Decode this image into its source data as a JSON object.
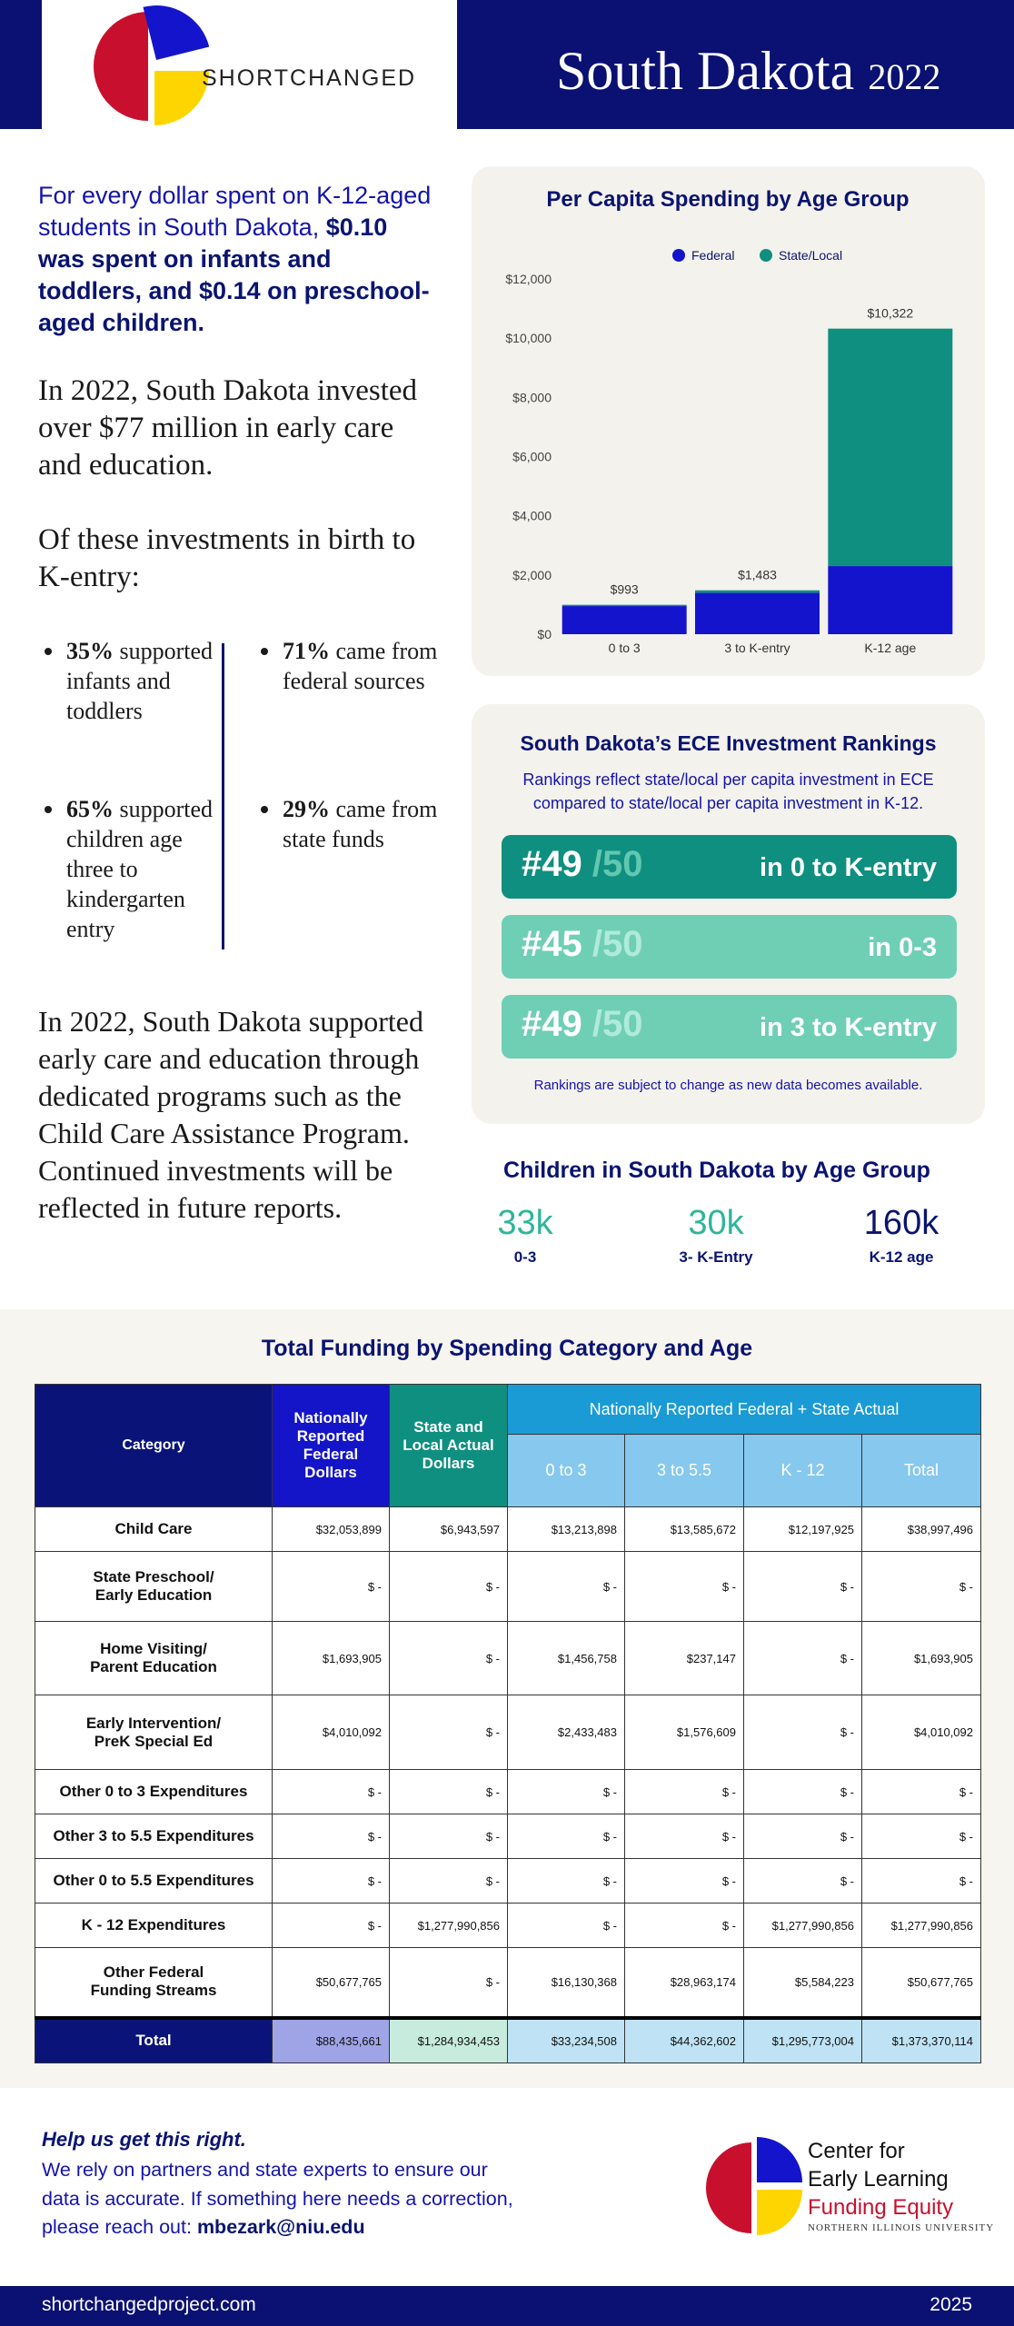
{
  "header": {
    "brand": "SHORTCHANGED",
    "state": "South Dakota",
    "year": "2022"
  },
  "intro": {
    "lead": "For every dollar spent on K-12-aged students in South Dakota,",
    "lead_bold": "$0.10 was spent on infants and toddlers, and $0.14 on preschool-aged children.",
    "invested": "In 2022, South Dakota invested over $77 million in early care and education.",
    "breakdown_heading": "Of these investments in birth to K-entry:",
    "bullets": [
      {
        "pct": "35%",
        "text": "supported infants and toddlers"
      },
      {
        "pct": "65%",
        "text": "supported children age three to kindergarten entry"
      },
      {
        "pct": "71%",
        "text": "came from federal sources"
      },
      {
        "pct": "29%",
        "text": "came from state funds"
      }
    ],
    "closing": "In 2022, South Dakota supported early care and education through dedicated programs such as the Child Care Assistance Program. Continued investments will be reflected in future reports."
  },
  "chart_data": {
    "type": "bar",
    "stacked": true,
    "title": "Per Capita Spending by Age Group",
    "categories": [
      "0 to 3",
      "3 to K-entry",
      "K-12 age"
    ],
    "series": [
      {
        "name": "Federal",
        "color": "#1414cc",
        "values": [
          950,
          1400,
          2300
        ]
      },
      {
        "name": "State/Local",
        "color": "#0f8f80",
        "values": [
          43,
          83,
          8022
        ]
      }
    ],
    "totals": {
      "values": [
        993,
        1483,
        10322
      ],
      "value_labels": [
        "$993",
        "$1,483",
        "$10,322"
      ]
    },
    "ylim": [
      0,
      12000
    ],
    "yticks": [
      {
        "value": 0,
        "label": "$0"
      },
      {
        "value": 2000,
        "label": "$2,000"
      },
      {
        "value": 4000,
        "label": "$4,000"
      },
      {
        "value": 6000,
        "label": "$6,000"
      },
      {
        "value": 8000,
        "label": "$8,000"
      },
      {
        "value": 10000,
        "label": "$10,000"
      },
      {
        "value": 12000,
        "label": "$12,000"
      }
    ],
    "grid": false,
    "legend": "top"
  },
  "rankings": {
    "title": "South Dakota’s ECE Investment Rankings",
    "subtitle": "Rankings reflect state/local per capita investment in ECE compared to state/local per capita investment in K-12.",
    "items": [
      {
        "rank": "#49",
        "of": "/50",
        "label": "in 0 to K-entry"
      },
      {
        "rank": "#45",
        "of": "/50",
        "label": "in 0-3"
      },
      {
        "rank": "#49",
        "of": "/50",
        "label": "in 3 to K-entry"
      }
    ],
    "note": "Rankings are subject to change as new data becomes available."
  },
  "children": {
    "title": "Children in South Dakota by Age Group",
    "items": [
      {
        "value": "33k",
        "label": "0-3"
      },
      {
        "value": "30k",
        "label": "3- K-Entry"
      },
      {
        "value": "160k",
        "label": "K-12 age"
      }
    ]
  },
  "table": {
    "title": "Total Funding by Spending Category and Age",
    "headers": {
      "category": "Category",
      "federal": "Nationally Reported Federal Dollars",
      "state_local": "State and Local Actual Dollars",
      "group": "Nationally Reported Federal + State Actual",
      "sub": [
        "0 to 3",
        "3 to 5.5",
        "K - 12",
        "Total"
      ]
    },
    "rows": [
      [
        "Child Care",
        "$32,053,899",
        "$6,943,597",
        "$13,213,898",
        "$13,585,672",
        "$12,197,925",
        "$38,997,496"
      ],
      [
        "State Preschool/\nEarly Education",
        "$ -",
        "$ -",
        "$ -",
        "$ -",
        "$ -",
        "$ -"
      ],
      [
        "Home Visiting/\nParent Education",
        "$1,693,905",
        "$ -",
        "$1,456,758",
        "$237,147",
        "$ -",
        "$1,693,905"
      ],
      [
        "Early Intervention/\nPreK Special Ed",
        "$4,010,092",
        "$ -",
        "$2,433,483",
        "$1,576,609",
        "$ -",
        "$4,010,092"
      ],
      [
        "Other 0 to 3 Expenditures",
        "$ -",
        "$ -",
        "$ -",
        "$ -",
        "$ -",
        "$ -"
      ],
      [
        "Other 3 to 5.5 Expenditures",
        "$ -",
        "$ -",
        "$ -",
        "$ -",
        "$ -",
        "$ -"
      ],
      [
        "Other 0 to 5.5 Expenditures",
        "$ -",
        "$ -",
        "$ -",
        "$ -",
        "$ -",
        "$ -"
      ],
      [
        "K - 12 Expenditures",
        "$ -",
        "$1,277,990,856",
        "$ -",
        "$ -",
        "$1,277,990,856",
        "$1,277,990,856"
      ],
      [
        "Other Federal\nFunding Streams",
        "$50,677,765",
        "$ -",
        "$16,130,368",
        "$28,963,174",
        "$5,584,223",
        "$50,677,765"
      ]
    ],
    "total": [
      "Total",
      "$88,435,661",
      "$1,284,934,453",
      "$33,234,508",
      "$44,362,602",
      "$1,295,773,004",
      "$1,373,370,114"
    ]
  },
  "footer": {
    "heading": "Help us get this right.",
    "message": "We rely on partners and state experts to ensure our data is accurate. If something here needs a correction, please reach out:",
    "email": "mbezark@niu.edu",
    "org": [
      "Center for",
      "Early Learning",
      "Funding Equity"
    ],
    "university": "NORTHERN ILLINOIS UNIVERSITY",
    "site": "shortchangedproject.com",
    "year": "2025"
  }
}
